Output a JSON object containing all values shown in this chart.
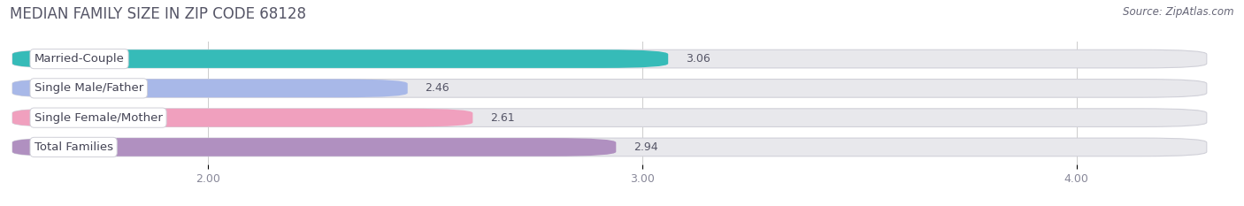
{
  "title": "MEDIAN FAMILY SIZE IN ZIP CODE 68128",
  "source": "Source: ZipAtlas.com",
  "categories": [
    "Married-Couple",
    "Single Male/Father",
    "Single Female/Mother",
    "Total Families"
  ],
  "values": [
    3.06,
    2.46,
    2.61,
    2.94
  ],
  "bar_colors": [
    "#36bbb8",
    "#a8b8e8",
    "#f0a0be",
    "#b090c0"
  ],
  "xlim_min": 1.55,
  "xlim_max": 4.3,
  "xticks": [
    2.0,
    3.0,
    4.0
  ],
  "xtick_labels": [
    "2.00",
    "3.00",
    "4.00"
  ],
  "background_color": "#ffffff",
  "bar_bg_color": "#e8e8ec",
  "title_fontsize": 12,
  "source_fontsize": 8.5,
  "bar_height": 0.62,
  "value_fontsize": 9,
  "label_fontsize": 9.5,
  "title_color": "#555566",
  "source_color": "#666677",
  "tick_color": "#888899",
  "value_color": "#555566"
}
